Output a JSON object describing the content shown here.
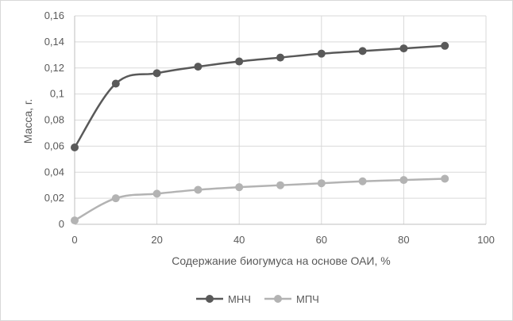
{
  "chart_data": {
    "type": "line",
    "xlabel": "Содержание биогумуса на основе ОАИ, %",
    "ylabel": "Масса, г.",
    "xlim": [
      0,
      100
    ],
    "ylim": [
      0,
      0.16
    ],
    "x_ticks": [
      "0",
      "20",
      "40",
      "60",
      "80",
      "100"
    ],
    "y_ticks": [
      "0",
      "0,02",
      "0,04",
      "0,06",
      "0,08",
      "0,1",
      "0,12",
      "0,14",
      "0,16"
    ],
    "grid": true,
    "legend_position": "bottom",
    "x": [
      0,
      10,
      20,
      30,
      40,
      50,
      60,
      70,
      80,
      90
    ],
    "series": [
      {
        "name": "МНЧ",
        "color": "#595959",
        "values": [
          0.059,
          0.108,
          0.116,
          0.121,
          0.125,
          0.128,
          0.131,
          0.133,
          0.135,
          0.137
        ]
      },
      {
        "name": "МПЧ",
        "color": "#b3b3b3",
        "values": [
          0.003,
          0.02,
          0.0235,
          0.0265,
          0.0285,
          0.03,
          0.0315,
          0.033,
          0.034,
          0.035
        ]
      }
    ]
  }
}
